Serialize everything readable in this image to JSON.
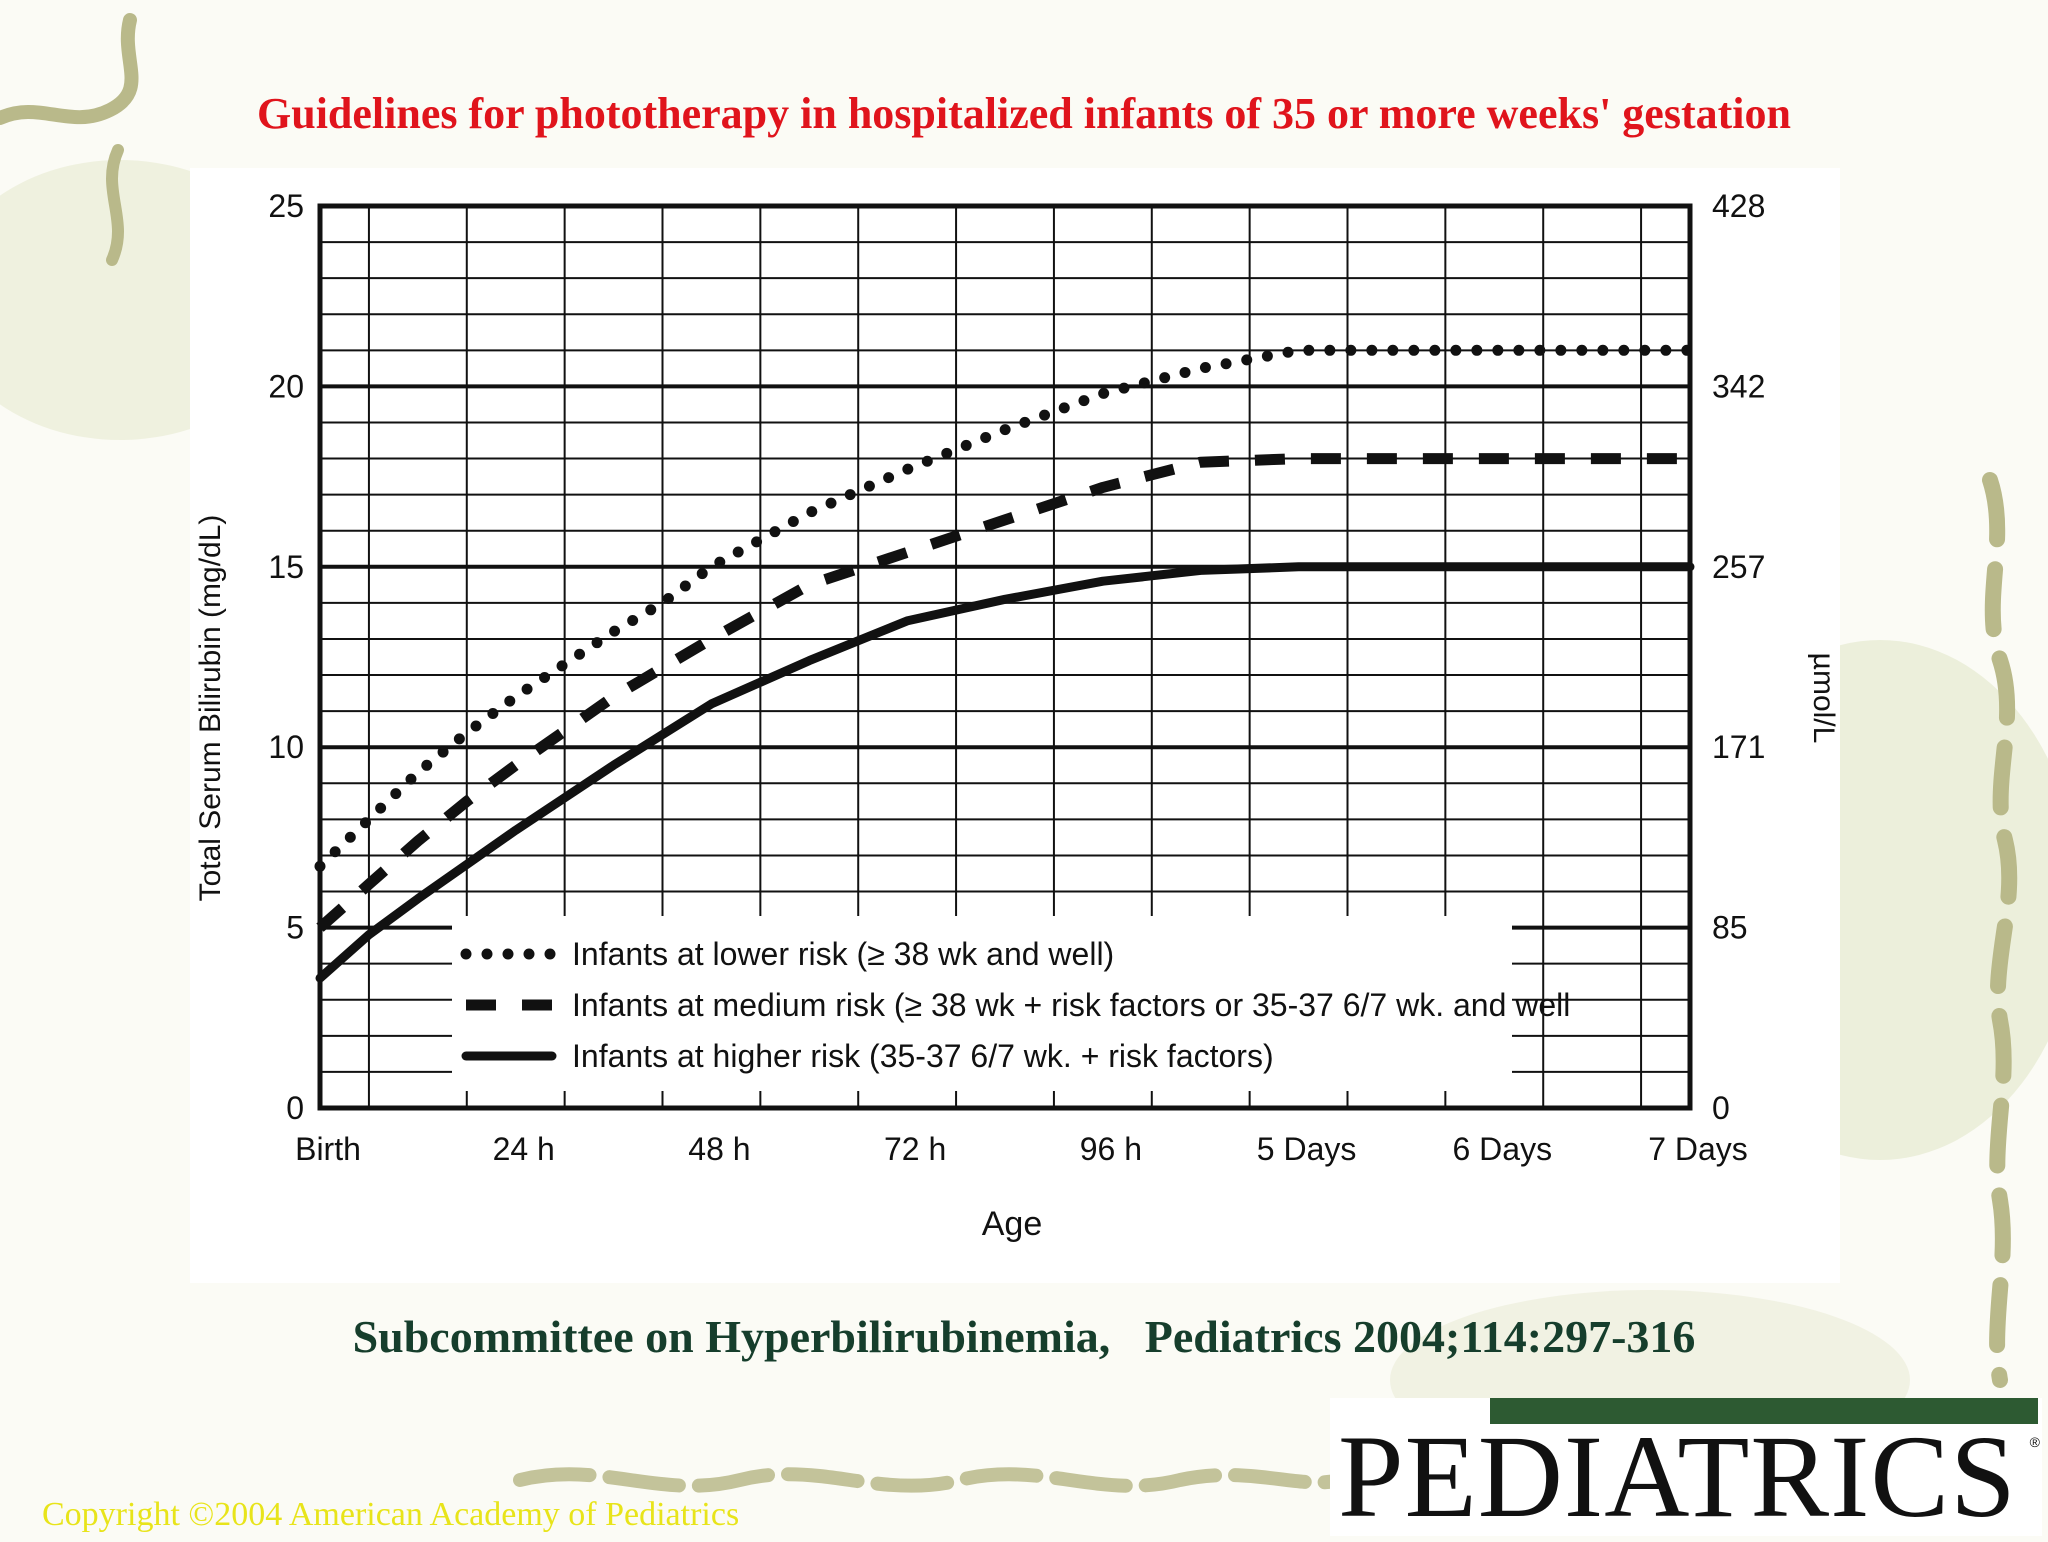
{
  "slide": {
    "title": "Guidelines for phototherapy in hospitalized infants of 35 or more weeks' gestation",
    "citation": "Subcommittee on Hyperbilirubinemia,   Pediatrics 2004;114:297-316",
    "copyright": "Copyright ©2004 American Academy of Pediatrics",
    "logo_text": "PEDIATRICS"
  },
  "colors": {
    "title": "#e0141c",
    "citation": "#163e2c",
    "copyright": "#e8e41a",
    "logo_bar": "#2d5a32",
    "chart_ink": "#111111"
  },
  "chart_data": {
    "type": "line",
    "title": "",
    "xlabel": "Age",
    "ylabel": "Total Serum Bilirubin (mg/dL)",
    "y2label": "µmol/L",
    "xlim": [
      0,
      168
    ],
    "ylim": [
      0,
      25
    ],
    "x_ticks": [
      {
        "x": 0,
        "label": "Birth"
      },
      {
        "x": 24,
        "label": "24 h"
      },
      {
        "x": 48,
        "label": "48 h"
      },
      {
        "x": 72,
        "label": "72 h"
      },
      {
        "x": 96,
        "label": "96 h"
      },
      {
        "x": 120,
        "label": "5 Days"
      },
      {
        "x": 144,
        "label": "6 Days"
      },
      {
        "x": 168,
        "label": "7 Days"
      }
    ],
    "y_ticks": [
      0,
      5,
      10,
      15,
      20,
      25
    ],
    "y2_ticks": [
      {
        "y": 0,
        "label": "0"
      },
      {
        "y": 5,
        "label": "85"
      },
      {
        "y": 10,
        "label": "171"
      },
      {
        "y": 15,
        "label": "257"
      },
      {
        "y": 20,
        "label": "342"
      },
      {
        "y": 25,
        "label": "428"
      }
    ],
    "grid": true,
    "legend_position": "bottom-left",
    "series": [
      {
        "name": "Infants at lower risk (≥ 38 wk and well)",
        "style": "dotted",
        "x": [
          0,
          6,
          12,
          18,
          24,
          30,
          36,
          42,
          48,
          60,
          72,
          84,
          96,
          108,
          120,
          132,
          144,
          156,
          168
        ],
        "y": [
          6.7,
          8.0,
          9.3,
          10.4,
          11.4,
          12.3,
          13.2,
          14.0,
          15.0,
          16.5,
          17.7,
          18.8,
          19.8,
          20.5,
          21.0,
          21.0,
          21.0,
          21.0,
          21.0
        ]
      },
      {
        "name": "Infants at medium risk (≥ 38 wk + risk factors or 35-37 6/7 wk. and well",
        "style": "dashed",
        "x": [
          0,
          6,
          12,
          18,
          24,
          36,
          48,
          60,
          72,
          84,
          96,
          108,
          120,
          132,
          144,
          156,
          168
        ],
        "y": [
          5.0,
          6.2,
          7.4,
          8.5,
          9.5,
          11.4,
          13.0,
          14.5,
          15.4,
          16.3,
          17.2,
          17.9,
          18.0,
          18.0,
          18.0,
          18.0,
          18.0
        ]
      },
      {
        "name": "Infants at higher risk (35-37 6/7 wk. + risk factors)",
        "style": "solid",
        "x": [
          0,
          6,
          12,
          24,
          36,
          48,
          60,
          72,
          84,
          96,
          108,
          120,
          132,
          144,
          156,
          168
        ],
        "y": [
          3.6,
          4.8,
          5.8,
          7.7,
          9.5,
          11.2,
          12.4,
          13.5,
          14.1,
          14.6,
          14.9,
          15.0,
          15.0,
          15.0,
          15.0,
          15.0
        ]
      }
    ]
  }
}
